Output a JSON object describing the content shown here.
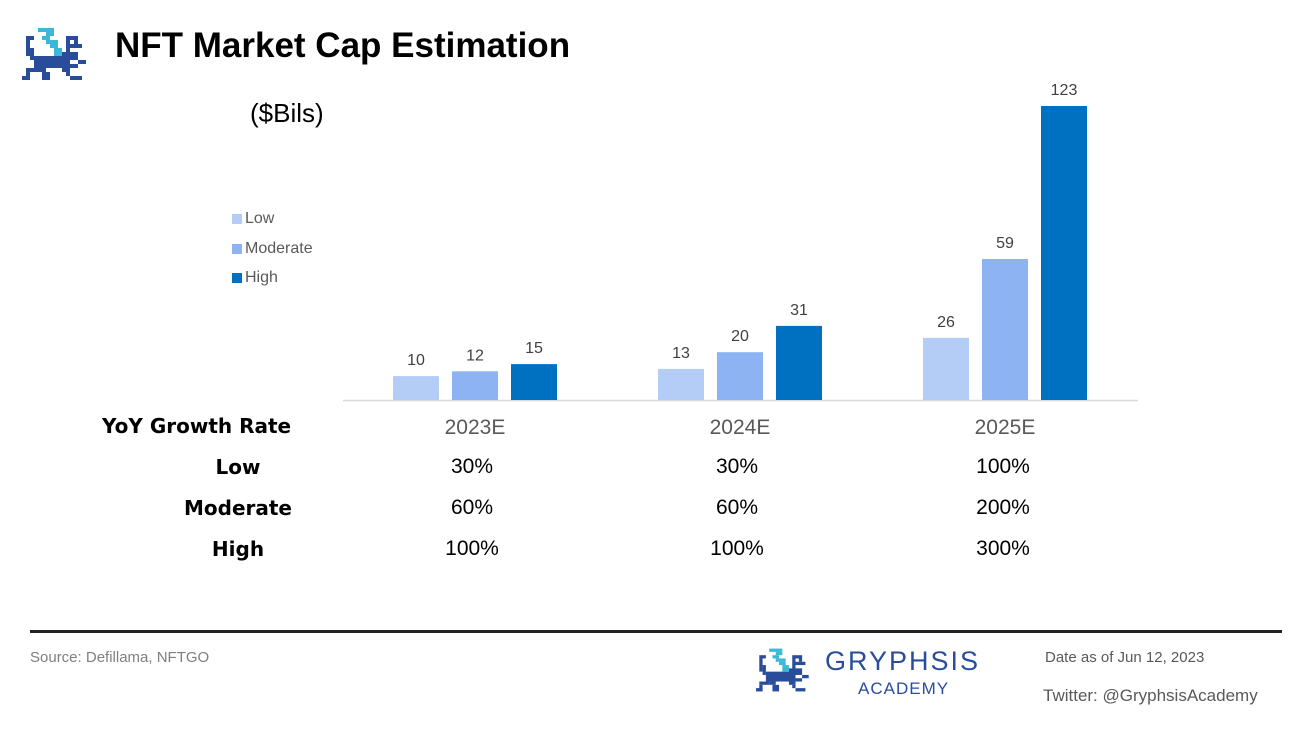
{
  "header": {
    "title": "NFT Market Cap Estimation",
    "unit": "($Bils)"
  },
  "colors": {
    "low": "#b4cdf7",
    "moderate": "#8db3f2",
    "high": "#0070c0",
    "logo_dark": "#2a4d9b",
    "logo_light": "#3bb8d8"
  },
  "chart_data": {
    "type": "bar",
    "title": "NFT Market Cap Estimation",
    "ylabel": "($Bils)",
    "xlabel": "",
    "categories": [
      "2023E",
      "2024E",
      "2025E"
    ],
    "series": [
      {
        "name": "Low",
        "values": [
          10,
          13,
          26
        ]
      },
      {
        "name": "Moderate",
        "values": [
          12,
          20,
          59
        ]
      },
      {
        "name": "High",
        "values": [
          15,
          31,
          123
        ]
      }
    ],
    "ylim": [
      0,
      123
    ],
    "grid": false,
    "legend_position": "top-left",
    "data_labels": true
  },
  "legend": [
    {
      "label": "Low",
      "color_key": "low"
    },
    {
      "label": "Moderate",
      "color_key": "moderate"
    },
    {
      "label": "High",
      "color_key": "high"
    }
  ],
  "growth_table": {
    "header": "YoY Growth Rate",
    "rows": [
      {
        "label": "Low",
        "values": [
          "30%",
          "30%",
          "100%"
        ]
      },
      {
        "label": "Moderate",
        "values": [
          "60%",
          "60%",
          "200%"
        ]
      },
      {
        "label": "High",
        "values": [
          "100%",
          "100%",
          "300%"
        ]
      }
    ]
  },
  "footer": {
    "source": "Source: Defillama, NFTGO",
    "brand_name": "GRYPHSIS",
    "brand_sub": "ACADEMY",
    "date": "Date as of Jun 12, 2023",
    "twitter": "Twitter: @GryphsisAcademy"
  }
}
